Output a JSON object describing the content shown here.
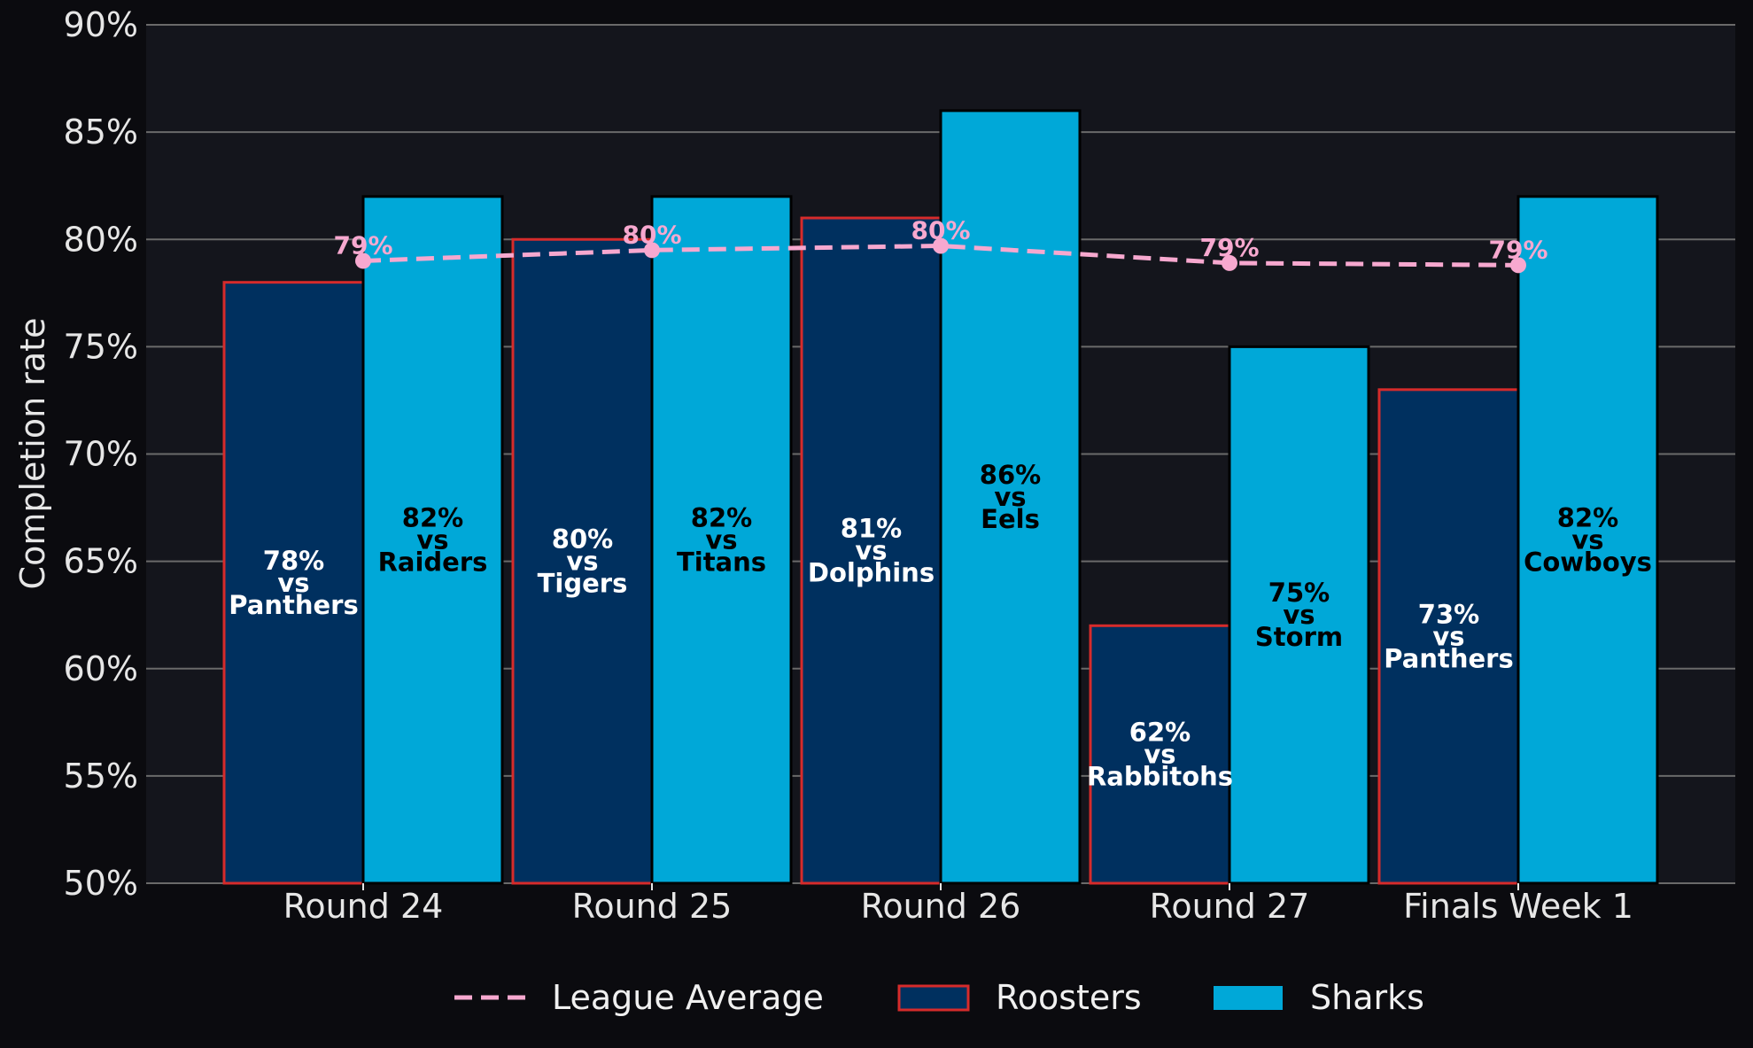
{
  "chart_data": {
    "type": "bar",
    "categories": [
      "Round 24",
      "Round 25",
      "Round 26",
      "Round 27",
      "Finals Week 1"
    ],
    "ylabel": "Completion rate",
    "xlabel": "",
    "ylim": [
      50,
      90
    ],
    "yticks": [
      50,
      55,
      60,
      65,
      70,
      75,
      80,
      85,
      90
    ],
    "ytick_labels": [
      "50%",
      "55%",
      "60%",
      "65%",
      "70%",
      "75%",
      "80%",
      "85%",
      "90%"
    ],
    "grid": true,
    "legend_position": "bottom",
    "series": [
      {
        "name": "Roosters",
        "kind": "bar",
        "color": "#00305f",
        "edge_color": "#d62b2b",
        "values": [
          78,
          80,
          81,
          62,
          73
        ],
        "labels": [
          [
            "78%",
            "vs",
            "Panthers"
          ],
          [
            "80%",
            "vs",
            "Tigers"
          ],
          [
            "81%",
            "vs",
            "Dolphins"
          ],
          [
            "62%",
            "vs",
            "Rabbitohs"
          ],
          [
            "73%",
            "vs",
            "Panthers"
          ]
        ]
      },
      {
        "name": "Sharks",
        "kind": "bar",
        "color": "#00a8d8",
        "edge_color": "#000000",
        "values": [
          82,
          82,
          86,
          75,
          82
        ],
        "labels": [
          [
            "82%",
            "vs",
            "Raiders"
          ],
          [
            "82%",
            "vs",
            "Titans"
          ],
          [
            "86%",
            "vs",
            "Eels"
          ],
          [
            "75%",
            "vs",
            "Storm"
          ],
          [
            "82%",
            "vs",
            "Cowboys"
          ]
        ]
      },
      {
        "name": "League Average",
        "kind": "line",
        "style": "dashed",
        "color": "#f7a8cf",
        "values": [
          79.0,
          79.5,
          79.7,
          78.9,
          78.8
        ],
        "labels": [
          "79%",
          "80%",
          "80%",
          "79%",
          "79%"
        ]
      }
    ],
    "legend": [
      "League Average",
      "Roosters",
      "Sharks"
    ]
  }
}
